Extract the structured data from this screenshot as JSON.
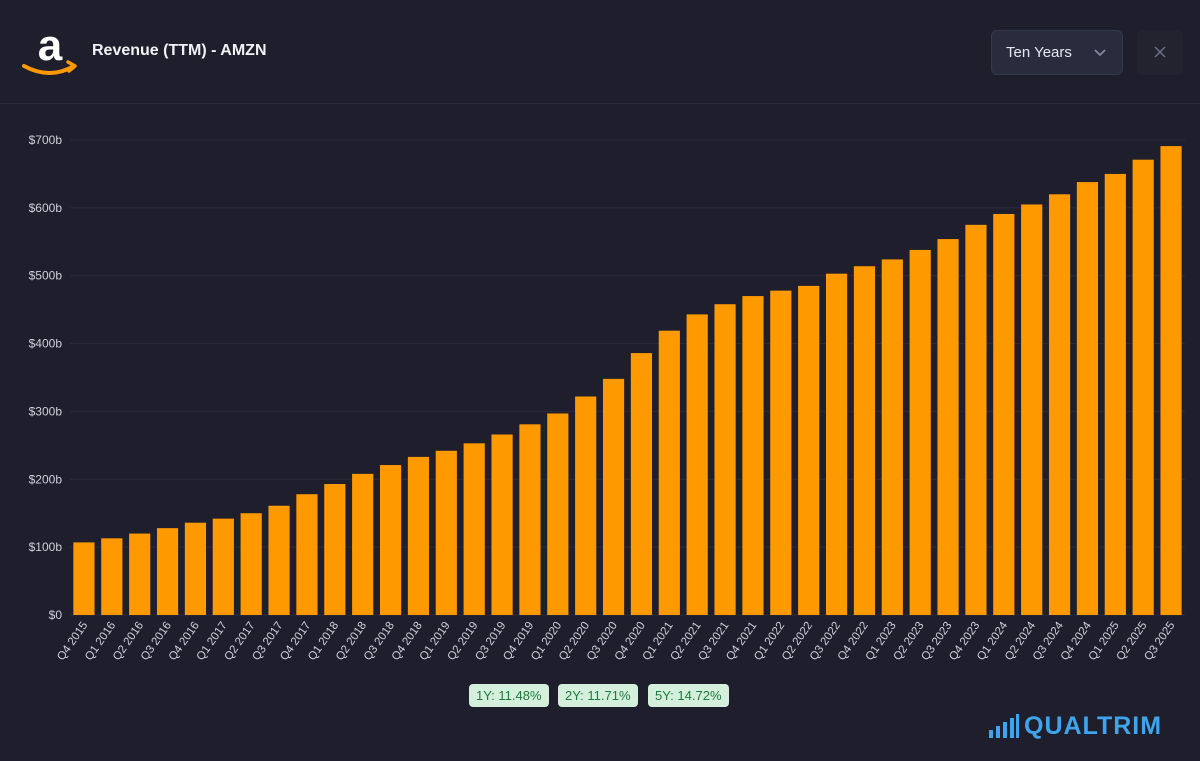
{
  "header": {
    "title": "Revenue (TTM) - AMZN",
    "range_value": "Ten Years"
  },
  "growth_badges": [
    {
      "label": "1Y: 11.48%"
    },
    {
      "label": "2Y: 11.71%"
    },
    {
      "label": "5Y: 14.72%"
    }
  ],
  "brand": {
    "name": "QUALTRIM"
  },
  "colors": {
    "background": "#1e1e2c",
    "bar": "#ff9900",
    "accent_brand": "#3ea4ec",
    "badge_bg": "#d5efdd",
    "badge_text": "#1f7a3c"
  },
  "chart_data": {
    "type": "bar",
    "title": "Revenue (TTM) - AMZN",
    "xlabel": "",
    "ylabel": "",
    "ylim": [
      0,
      700
    ],
    "yticks": [
      0,
      100,
      200,
      300,
      400,
      500,
      600,
      700
    ],
    "ytick_labels": [
      "$0",
      "$100b",
      "$200b",
      "$300b",
      "$400b",
      "$500b",
      "$600b",
      "$700b"
    ],
    "categories": [
      "Q4 2015",
      "Q1 2016",
      "Q2 2016",
      "Q3 2016",
      "Q4 2016",
      "Q1 2017",
      "Q2 2017",
      "Q3 2017",
      "Q4 2017",
      "Q1 2018",
      "Q2 2018",
      "Q3 2018",
      "Q4 2018",
      "Q1 2019",
      "Q2 2019",
      "Q3 2019",
      "Q4 2019",
      "Q1 2020",
      "Q2 2020",
      "Q3 2020",
      "Q4 2020",
      "Q1 2021",
      "Q2 2021",
      "Q3 2021",
      "Q4 2021",
      "Q1 2022",
      "Q2 2022",
      "Q3 2022",
      "Q4 2022",
      "Q1 2023",
      "Q2 2023",
      "Q3 2023",
      "Q4 2023",
      "Q1 2024",
      "Q2 2024",
      "Q3 2024",
      "Q4 2024",
      "Q1 2025",
      "Q2 2025",
      "Q3 2025"
    ],
    "values": [
      107,
      113,
      120,
      128,
      136,
      142,
      150,
      161,
      178,
      193,
      208,
      221,
      233,
      242,
      253,
      266,
      281,
      297,
      322,
      348,
      386,
      419,
      443,
      458,
      470,
      478,
      485,
      503,
      514,
      524,
      538,
      554,
      575,
      591,
      605,
      620,
      638,
      650,
      671,
      691
    ],
    "series_color": "#ff9900",
    "grid": true,
    "legend": "none"
  }
}
